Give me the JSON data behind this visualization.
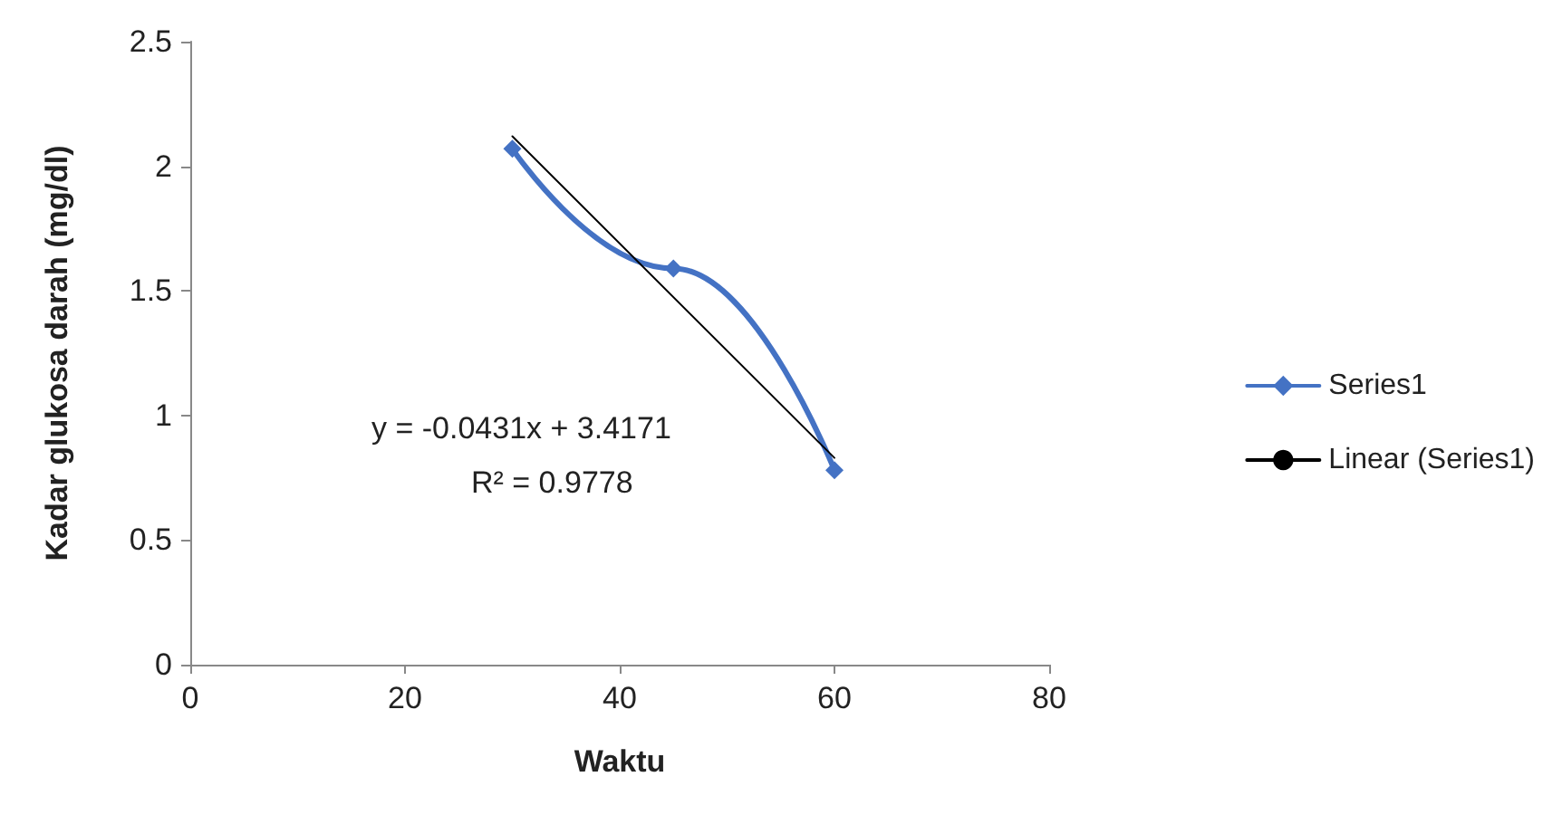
{
  "chart_data": {
    "type": "line",
    "xlabel": "Waktu",
    "ylabel": "Kadar glukosa darah (mg/dl)",
    "x": [
      30,
      45,
      60
    ],
    "series": [
      {
        "name": "Series1",
        "color": "#4472c4",
        "values": [
          2.07,
          1.59,
          0.78
        ],
        "marker": "diamond"
      },
      {
        "name": "Linear (Series1)",
        "color": "#000000",
        "x": [
          30,
          60
        ],
        "values": [
          2.12,
          0.83
        ],
        "marker": "none"
      }
    ],
    "xlim": [
      0,
      80
    ],
    "xticks": [
      0,
      20,
      40,
      60,
      80
    ],
    "ylim": [
      0,
      2.5
    ],
    "yticks": [
      0,
      0.5,
      1,
      1.5,
      2,
      2.5
    ],
    "annotations": [
      "y = -0.0431x + 3.4171",
      "R² = 0.9778"
    ],
    "legend": "right",
    "grid": false
  }
}
